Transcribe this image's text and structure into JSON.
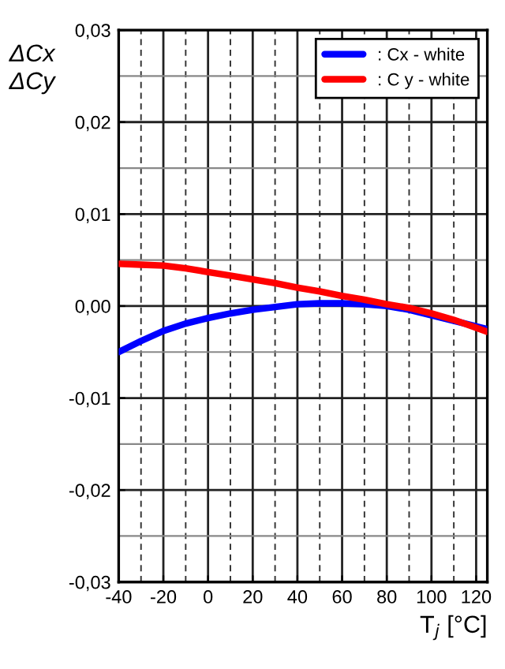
{
  "chart_data": {
    "type": "line",
    "xlabel": "T$_{j}$ [°C]",
    "ylabel": "ΔCx\nΔCy",
    "x": [
      -40,
      -30,
      -20,
      -10,
      0,
      10,
      20,
      30,
      40,
      50,
      60,
      70,
      80,
      90,
      100,
      110,
      125
    ],
    "series": [
      {
        "name": ": Cx - white",
        "color": "#0000ff",
        "values": [
          -0.005,
          -0.0038,
          -0.0027,
          -0.0019,
          -0.0013,
          -0.0008,
          -0.0004,
          -0.0001,
          0.0002,
          0.0003,
          0.0003,
          0.0002,
          0.0,
          -0.0004,
          -0.001,
          -0.0016,
          -0.0025
        ]
      },
      {
        "name": ": C y - white",
        "color": "#ff0000",
        "values": [
          0.0046,
          0.0045,
          0.0044,
          0.0041,
          0.0037,
          0.0033,
          0.0029,
          0.0025,
          0.002,
          0.0016,
          0.0011,
          0.0007,
          0.0002,
          -0.0002,
          -0.0008,
          -0.0015,
          -0.0028
        ]
      }
    ],
    "xlim": [
      -40,
      125
    ],
    "xticks": [
      -40,
      -20,
      0,
      20,
      40,
      60,
      80,
      100,
      120
    ],
    "ylim": [
      -0.03,
      0.03
    ],
    "yticks": [
      {
        "value": -0.03,
        "label": "-0,03"
      },
      {
        "value": -0.02,
        "label": "-0,02"
      },
      {
        "value": -0.01,
        "label": "-0,01"
      },
      {
        "value": 0.0,
        "label": "0,00"
      },
      {
        "value": 0.01,
        "label": "0,01"
      },
      {
        "value": 0.02,
        "label": "0,02"
      },
      {
        "value": 0.03,
        "label": "0,03"
      }
    ],
    "grid": true,
    "legend": "top right",
    "line_style": "solid",
    "marker": "none"
  }
}
